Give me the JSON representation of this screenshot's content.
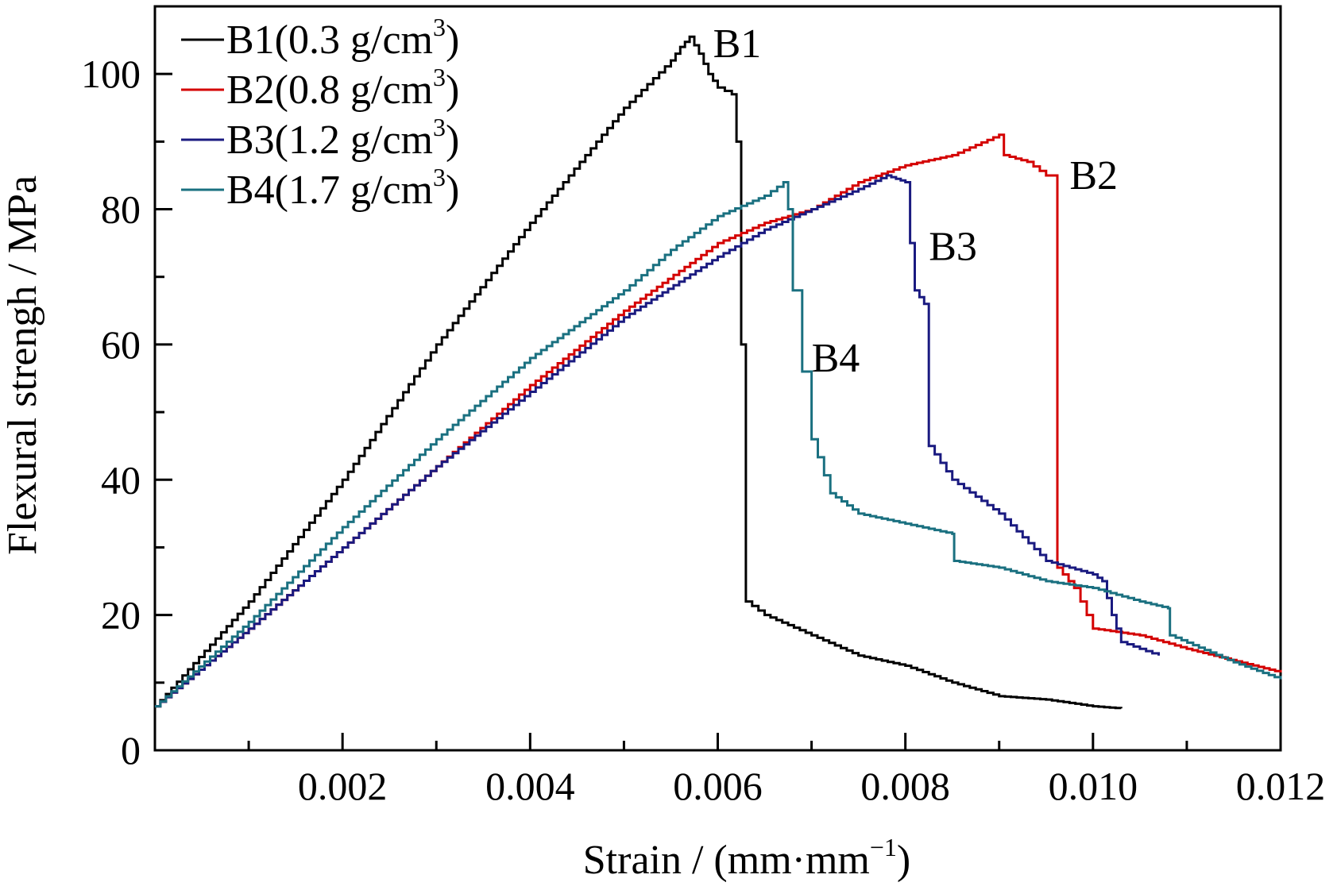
{
  "chart_data": {
    "type": "line",
    "title": "",
    "xlabel": "Strain / (mm·mm",
    "xlabel_sup": "−1",
    "xlabel_close": ")",
    "ylabel": "Flexural strengh / MPa",
    "xlim": [
      0,
      0.012
    ],
    "ylim": [
      0,
      110
    ],
    "x_ticks": [
      0.002,
      0.004,
      0.006,
      0.008,
      0.01,
      0.012
    ],
    "x_tick_labels": [
      "0.002",
      "0.004",
      "0.006",
      "0.008",
      "0.010",
      "0.012"
    ],
    "y_ticks": [
      0,
      20,
      40,
      60,
      80,
      100
    ],
    "y_tick_labels": [
      "0",
      "20",
      "40",
      "60",
      "80",
      "100"
    ],
    "grid": false,
    "legend_position": "top-left",
    "series": [
      {
        "name": "B1(0.3 g/cm",
        "name_sup": "3",
        "name_close": ")",
        "label": "B1",
        "color": "#000000",
        "points": [
          [
            0,
            6.5
          ],
          [
            0.001,
            22
          ],
          [
            0.002,
            40
          ],
          [
            0.003,
            60
          ],
          [
            0.004,
            78
          ],
          [
            0.005,
            95
          ],
          [
            0.0055,
            102
          ],
          [
            0.0056,
            104
          ],
          [
            0.0057,
            105.5
          ],
          [
            0.0058,
            103
          ],
          [
            0.0059,
            100
          ],
          [
            0.006,
            98
          ],
          [
            0.00615,
            97
          ],
          [
            0.0062,
            90
          ],
          [
            0.00625,
            60
          ],
          [
            0.0063,
            22
          ],
          [
            0.0065,
            20
          ],
          [
            0.007,
            17
          ],
          [
            0.0075,
            14
          ],
          [
            0.008,
            12.5
          ],
          [
            0.0085,
            10
          ],
          [
            0.009,
            8
          ],
          [
            0.0095,
            7.5
          ],
          [
            0.01,
            6.5
          ],
          [
            0.0103,
            6.2
          ]
        ]
      },
      {
        "name": "B2(0.8 g/cm",
        "name_sup": "3",
        "name_close": ")",
        "label": "B2",
        "color": "#d40000",
        "points": [
          [
            0,
            6.5
          ],
          [
            0.001,
            18
          ],
          [
            0.002,
            30
          ],
          [
            0.003,
            42
          ],
          [
            0.004,
            54
          ],
          [
            0.005,
            65
          ],
          [
            0.006,
            75
          ],
          [
            0.0065,
            78
          ],
          [
            0.007,
            80
          ],
          [
            0.0075,
            84
          ],
          [
            0.008,
            86.5
          ],
          [
            0.0085,
            88
          ],
          [
            0.009,
            91
          ],
          [
            0.00905,
            88
          ],
          [
            0.0093,
            87
          ],
          [
            0.0095,
            85
          ],
          [
            0.0096,
            85
          ],
          [
            0.00962,
            27
          ],
          [
            0.0098,
            24
          ],
          [
            0.01,
            18
          ],
          [
            0.0105,
            17
          ],
          [
            0.011,
            15
          ],
          [
            0.012,
            11.5
          ]
        ]
      },
      {
        "name": "B3(1.2 g/cm",
        "name_sup": "3",
        "name_close": ")",
        "label": "B3",
        "color": "#1a1a80",
        "points": [
          [
            0,
            6.5
          ],
          [
            0.001,
            18
          ],
          [
            0.002,
            30
          ],
          [
            0.003,
            42
          ],
          [
            0.004,
            53
          ],
          [
            0.005,
            64
          ],
          [
            0.006,
            73
          ],
          [
            0.0065,
            77
          ],
          [
            0.007,
            80
          ],
          [
            0.0075,
            83
          ],
          [
            0.0078,
            85
          ],
          [
            0.0079,
            84.5
          ],
          [
            0.008,
            84
          ],
          [
            0.00805,
            75
          ],
          [
            0.0081,
            68
          ],
          [
            0.0082,
            66
          ],
          [
            0.00825,
            45
          ],
          [
            0.0085,
            40
          ],
          [
            0.009,
            35
          ],
          [
            0.0095,
            28
          ],
          [
            0.01,
            26
          ],
          [
            0.0101,
            25
          ],
          [
            0.0102,
            20
          ],
          [
            0.0103,
            16
          ],
          [
            0.0105,
            15
          ],
          [
            0.0107,
            14
          ]
        ]
      },
      {
        "name": "B4(1.7 g/cm",
        "name_sup": "3",
        "name_close": ")",
        "label": "B4",
        "color": "#1a7080",
        "points": [
          [
            0,
            6.5
          ],
          [
            0.001,
            19
          ],
          [
            0.002,
            33
          ],
          [
            0.003,
            46
          ],
          [
            0.004,
            58
          ],
          [
            0.005,
            68
          ],
          [
            0.0055,
            74
          ],
          [
            0.006,
            79
          ],
          [
            0.0065,
            82
          ],
          [
            0.0067,
            84
          ],
          [
            0.00675,
            80
          ],
          [
            0.0068,
            68
          ],
          [
            0.0069,
            56
          ],
          [
            0.007,
            46
          ],
          [
            0.0072,
            38
          ],
          [
            0.0075,
            35
          ],
          [
            0.008,
            33.5
          ],
          [
            0.0085,
            32
          ],
          [
            0.00852,
            28
          ],
          [
            0.009,
            27
          ],
          [
            0.0095,
            25
          ],
          [
            0.01,
            24
          ],
          [
            0.0105,
            22
          ],
          [
            0.0108,
            21
          ],
          [
            0.01082,
            17
          ],
          [
            0.0115,
            13
          ],
          [
            0.012,
            10.5
          ]
        ]
      }
    ],
    "annotations": [
      {
        "text": "B1",
        "x": 0.00595,
        "y": 102.5
      },
      {
        "text": "B2",
        "x": 0.00975,
        "y": 83
      },
      {
        "text": "B3",
        "x": 0.00825,
        "y": 72.5
      },
      {
        "text": "B4",
        "x": 0.007,
        "y": 56
      }
    ]
  }
}
